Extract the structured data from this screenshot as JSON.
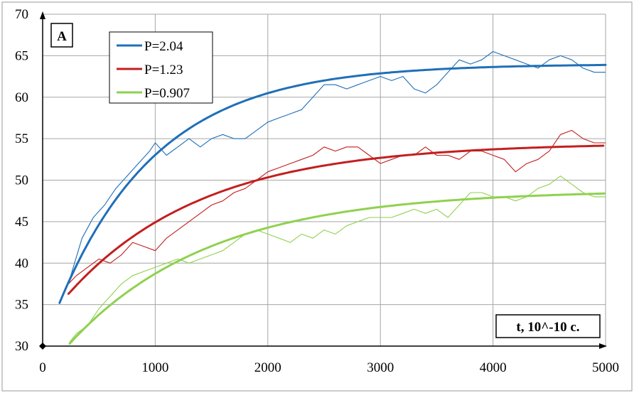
{
  "chart_data": {
    "type": "line",
    "panel_label": "A",
    "xlabel": "t, 10^-10 c.",
    "ylabel": "",
    "xlim": [
      0,
      5000
    ],
    "ylim": [
      30,
      70
    ],
    "x_ticks": [
      0,
      1000,
      2000,
      3000,
      4000,
      5000
    ],
    "y_ticks": [
      30,
      35,
      40,
      45,
      50,
      55,
      60,
      65,
      70
    ],
    "grid": true,
    "legend_position": "top-left",
    "series": [
      {
        "name": "P=2.04",
        "color": "#1f6fb8",
        "fit": {
          "x0": 150,
          "x1": 5000,
          "y0": 35.2,
          "ymax": 64.0,
          "tau": 880
        },
        "noisy": {
          "x": [
            150,
            250,
            350,
            450,
            550,
            650,
            750,
            850,
            950,
            1000,
            1100,
            1200,
            1300,
            1400,
            1500,
            1600,
            1700,
            1800,
            1900,
            2000,
            2100,
            2200,
            2300,
            2400,
            2500,
            2600,
            2700,
            2800,
            2900,
            3000,
            3100,
            3200,
            3300,
            3400,
            3500,
            3600,
            3700,
            3800,
            3900,
            4000,
            4100,
            4200,
            4300,
            4400,
            4500,
            4600,
            4700,
            4800,
            4900,
            5000
          ],
          "y": [
            35.2,
            38.5,
            43,
            45.5,
            47,
            49,
            50.5,
            52,
            53.5,
            54.5,
            53,
            54,
            55,
            54,
            55,
            55.5,
            55,
            55,
            56,
            57,
            57.5,
            58,
            58.5,
            60,
            61.5,
            61.5,
            61,
            61.5,
            62,
            62.5,
            62,
            62.5,
            61,
            60.5,
            61.5,
            63,
            64.5,
            64,
            64.5,
            65.5,
            65,
            64.5,
            64,
            63.5,
            64.5,
            65,
            64.5,
            63.5,
            63,
            63
          ]
        }
      },
      {
        "name": "P=1.23",
        "color": "#c21f1f",
        "fit": {
          "x0": 230,
          "x1": 5000,
          "y0": 36.3,
          "ymax": 54.5,
          "tau": 1200
        },
        "noisy": {
          "x": [
            230,
            300,
            400,
            500,
            600,
            700,
            800,
            900,
            1000,
            1100,
            1200,
            1300,
            1400,
            1500,
            1600,
            1700,
            1800,
            1900,
            2000,
            2100,
            2200,
            2300,
            2400,
            2500,
            2600,
            2700,
            2800,
            2900,
            3000,
            3100,
            3200,
            3300,
            3400,
            3500,
            3600,
            3700,
            3800,
            3900,
            4000,
            4100,
            4200,
            4300,
            4400,
            4500,
            4600,
            4700,
            4800,
            4900,
            5000
          ],
          "y": [
            37.5,
            38.5,
            39.5,
            40.5,
            40,
            41,
            42.5,
            42,
            41.5,
            43,
            44,
            45,
            46,
            47,
            47.5,
            48.5,
            49,
            50,
            51,
            51.5,
            52,
            52.5,
            53,
            54,
            53.5,
            54,
            54,
            53,
            52,
            52.5,
            53,
            53,
            54,
            53,
            53,
            52.5,
            53.5,
            53.5,
            53,
            52.5,
            51,
            52,
            52.5,
            53.5,
            55.5,
            56,
            55,
            54.5,
            54.5
          ]
        }
      },
      {
        "name": "P=0.907",
        "color": "#8fd14f",
        "fit": {
          "x0": 240,
          "x1": 5000,
          "y0": 30.3,
          "ymax": 48.8,
          "tau": 1250
        },
        "noisy": {
          "x": [
            240,
            300,
            400,
            500,
            600,
            700,
            800,
            900,
            1000,
            1100,
            1200,
            1300,
            1400,
            1500,
            1600,
            1700,
            1800,
            1900,
            2000,
            2100,
            2200,
            2300,
            2400,
            2500,
            2600,
            2700,
            2800,
            2900,
            3000,
            3100,
            3200,
            3300,
            3400,
            3500,
            3600,
            3700,
            3800,
            3900,
            4000,
            4100,
            4200,
            4300,
            4400,
            4500,
            4600,
            4700,
            4800,
            4900,
            5000
          ],
          "y": [
            30.5,
            31.5,
            32.5,
            34.5,
            36,
            37.5,
            38.5,
            39,
            39.5,
            40,
            40.5,
            40,
            40.5,
            41,
            41.5,
            42.5,
            43.5,
            44,
            43.5,
            43,
            42.5,
            43.5,
            43,
            44,
            43.5,
            44.5,
            45,
            45.5,
            45.5,
            45.5,
            46,
            46.5,
            46,
            46.5,
            45.5,
            47,
            48.5,
            48.5,
            48,
            48,
            47.5,
            48,
            49,
            49.5,
            50.5,
            49.5,
            48.5,
            48,
            48
          ]
        }
      }
    ]
  }
}
